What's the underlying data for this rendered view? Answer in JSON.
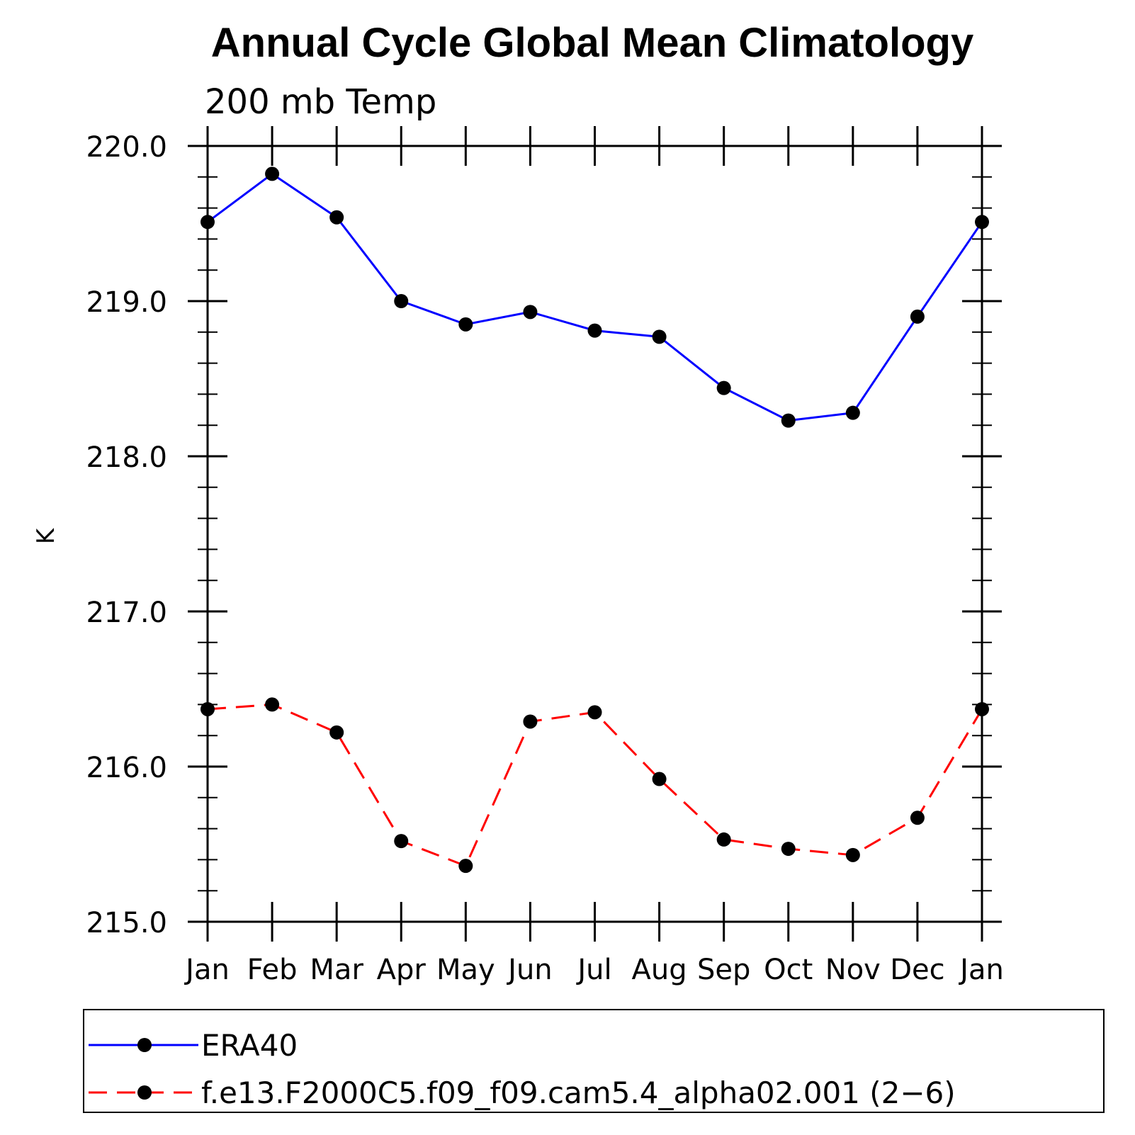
{
  "chart_data": {
    "type": "line",
    "title": "Annual Cycle Global Mean Climatology",
    "subtitle": "200 mb Temp",
    "xlabel": "",
    "ylabel": "K",
    "categories": [
      "Jan",
      "Feb",
      "Mar",
      "Apr",
      "May",
      "Jun",
      "Jul",
      "Aug",
      "Sep",
      "Oct",
      "Nov",
      "Dec",
      "Jan"
    ],
    "ylim": [
      215.0,
      220.0
    ],
    "y_ticks": [
      "215.0",
      "216.0",
      "217.0",
      "218.0",
      "219.0",
      "220.0"
    ],
    "y_minor_step": 0.2,
    "grid": false,
    "series": [
      {
        "name": "ERA40",
        "color": "#0000ff",
        "dash": "solid",
        "values": [
          219.51,
          219.82,
          219.54,
          219.0,
          218.85,
          218.93,
          218.81,
          218.77,
          218.44,
          218.23,
          218.28,
          218.9,
          219.51
        ]
      },
      {
        "name": "f.e13.F2000C5.f09_f09.cam5.4_alpha02.001 (2−6)",
        "color": "#ff0000",
        "dash": "dashed",
        "values": [
          216.37,
          216.4,
          216.22,
          215.52,
          215.36,
          216.29,
          216.35,
          215.92,
          215.53,
          215.47,
          215.43,
          215.67,
          216.37
        ]
      }
    ],
    "legend_position": "bottom"
  }
}
